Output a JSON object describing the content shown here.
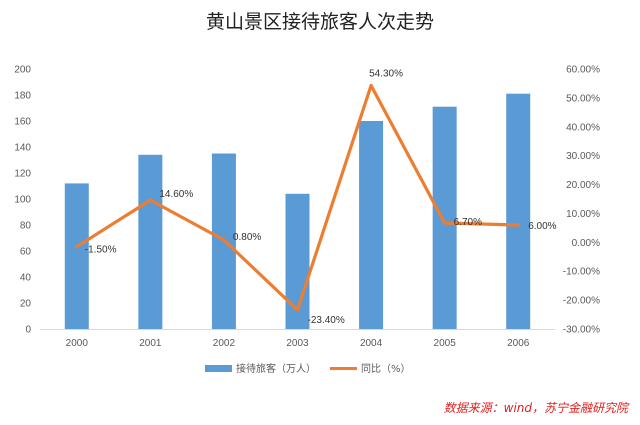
{
  "chart_data": {
    "type": "bar",
    "title": "黄山景区接待旅客人次走势",
    "categories": [
      "2000",
      "2001",
      "2002",
      "2003",
      "2004",
      "2005",
      "2006"
    ],
    "series": [
      {
        "name": "接待旅客（万人）",
        "type": "bar",
        "axis": "left",
        "color": "#5b9bd5",
        "values": [
          112,
          134,
          135,
          104,
          160,
          171,
          181
        ]
      },
      {
        "name": "同比（%）",
        "type": "line",
        "axis": "right",
        "color": "#ed7d31",
        "values": [
          -1.5,
          14.6,
          0.8,
          -23.4,
          54.3,
          6.7,
          6.0
        ],
        "labels": [
          "-1.50%",
          "14.60%",
          "0.80%",
          "-23.40%",
          "54.30%",
          "6.70%",
          "6.00%"
        ]
      }
    ],
    "left_axis": {
      "ylim": [
        0,
        200
      ],
      "ticks": [
        "0",
        "20",
        "40",
        "60",
        "80",
        "100",
        "120",
        "140",
        "160",
        "180",
        "200"
      ]
    },
    "right_axis": {
      "ylim": [
        -30,
        60
      ],
      "ticks": [
        "-30.00%",
        "-20.00%",
        "-10.00%",
        "0.00%",
        "10.00%",
        "20.00%",
        "30.00%",
        "40.00%",
        "50.00%",
        "60.00%"
      ]
    },
    "grid": false,
    "legend": "bottom"
  },
  "source": "数据来源：wind，苏宁金融研究院"
}
